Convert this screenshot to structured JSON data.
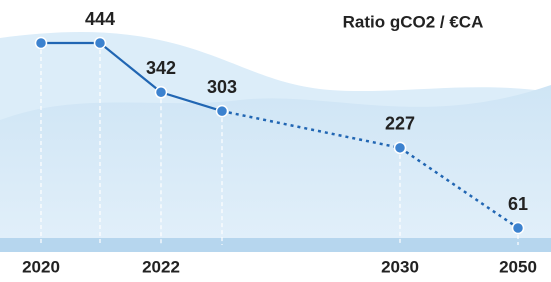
{
  "chart_data": {
    "type": "line",
    "title": "Ratio gCO2 / €CA",
    "categories": [
      "2020",
      null,
      "2022",
      null,
      "2030",
      "2050"
    ],
    "values": [
      444,
      444,
      342,
      303,
      227,
      61
    ],
    "color": "#2166b3"
  }
}
